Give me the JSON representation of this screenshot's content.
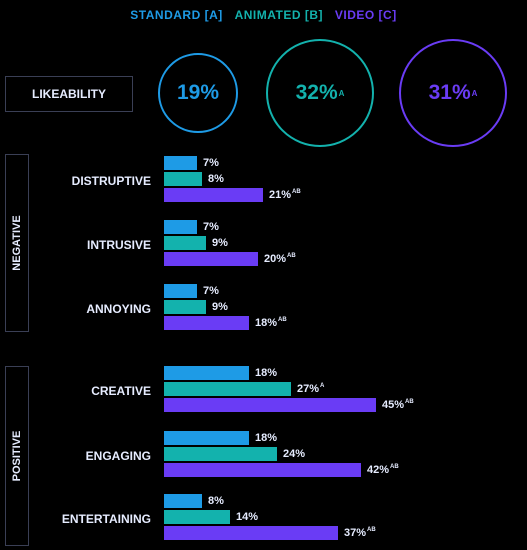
{
  "legend": [
    {
      "label": "STANDARD [A]",
      "color": "#1e9be6"
    },
    {
      "label": "ANIMATED [B]",
      "color": "#13b2ad"
    },
    {
      "label": "VIDEO [C]",
      "color": "#6a3cf5"
    }
  ],
  "likeability": {
    "label": "LIKEABILITY",
    "values": [
      {
        "value": "19%",
        "sig": ""
      },
      {
        "value": "32%",
        "sig": "A"
      },
      {
        "value": "31%",
        "sig": "A"
      }
    ]
  },
  "chart_data": {
    "type": "bar",
    "orientation": "horizontal",
    "unit": "%",
    "groups": [
      {
        "label": "NEGATIVE",
        "categories": [
          {
            "label": "DISTRUPTIVE",
            "values": [
              7,
              8,
              21
            ],
            "display": [
              "7%",
              "8%",
              "21%"
            ],
            "sig": [
              "",
              "",
              "AB"
            ]
          },
          {
            "label": "INTRUSIVE",
            "values": [
              7,
              9,
              20
            ],
            "display": [
              "7%",
              "9%",
              "20%"
            ],
            "sig": [
              "",
              "",
              "AB"
            ]
          },
          {
            "label": "ANNOYING",
            "values": [
              7,
              9,
              18
            ],
            "display": [
              "7%",
              "9%",
              "18%"
            ],
            "sig": [
              "",
              "",
              "AB"
            ]
          }
        ]
      },
      {
        "label": "POSITIVE",
        "categories": [
          {
            "label": "CREATIVE",
            "values": [
              18,
              27,
              45
            ],
            "display": [
              "18%",
              "27%",
              "45%"
            ],
            "sig": [
              "",
              "A",
              "AB"
            ]
          },
          {
            "label": "ENGAGING",
            "values": [
              18,
              24,
              42
            ],
            "display": [
              "18%",
              "24%",
              "42%"
            ],
            "sig": [
              "",
              "",
              "AB"
            ]
          },
          {
            "label": "ENTERTAINING",
            "values": [
              8,
              14,
              37
            ],
            "display": [
              "8%",
              "14%",
              "37%"
            ],
            "sig": [
              "",
              "",
              "AB"
            ]
          }
        ]
      }
    ],
    "series": [
      {
        "name": "STANDARD [A]",
        "color": "#1e9be6"
      },
      {
        "name": "ANIMATED [B]",
        "color": "#13b2ad"
      },
      {
        "name": "VIDEO [C]",
        "color": "#6a3cf5"
      }
    ]
  }
}
